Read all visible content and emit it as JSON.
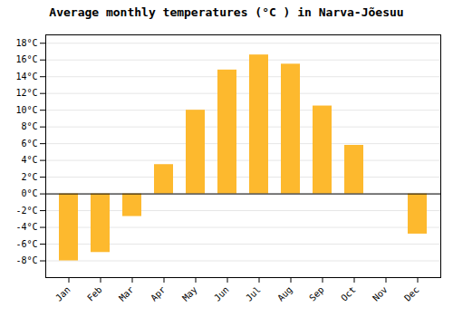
{
  "chart_data": {
    "type": "bar",
    "title": "Average monthly temperatures (°C ) in Narva-Jõesuu",
    "categories": [
      "Jan",
      "Feb",
      "Mar",
      "Apr",
      "May",
      "Jun",
      "Jul",
      "Aug",
      "Sep",
      "Oct",
      "Nov",
      "Dec"
    ],
    "values": [
      -8,
      -7,
      -2.7,
      3.5,
      10,
      14.8,
      16.6,
      15.5,
      10.5,
      5.8,
      0,
      -4.8
    ],
    "color": "#FDB92E",
    "ylim": [
      -10,
      19
    ],
    "yticks": [
      {
        "value": -8,
        "label": "-8°C"
      },
      {
        "value": -6,
        "label": "-6°C"
      },
      {
        "value": -4,
        "label": "-4°C"
      },
      {
        "value": -2,
        "label": "-2°C"
      },
      {
        "value": 0,
        "label": "0°C"
      },
      {
        "value": 2,
        "label": "2°C"
      },
      {
        "value": 4,
        "label": "4°C"
      },
      {
        "value": 6,
        "label": "6°C"
      },
      {
        "value": 8,
        "label": "8°C"
      },
      {
        "value": 10,
        "label": "10°C"
      },
      {
        "value": 12,
        "label": "12°C"
      },
      {
        "value": 14,
        "label": "14°C"
      },
      {
        "value": 16,
        "label": "16°C"
      },
      {
        "value": 18,
        "label": "18°C"
      }
    ],
    "grid": true
  }
}
